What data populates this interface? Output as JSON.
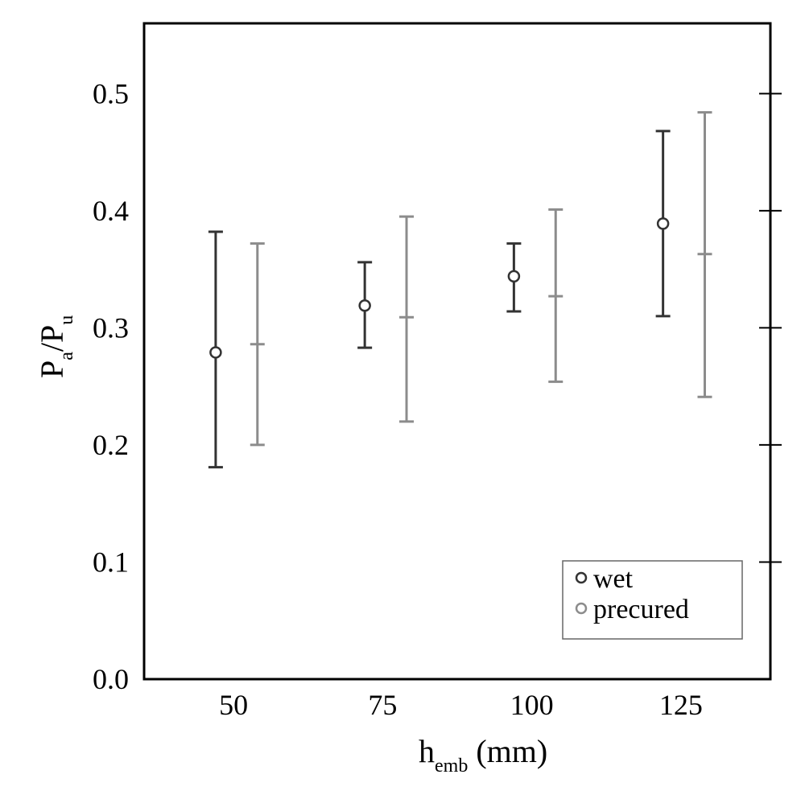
{
  "chart_data": {
    "type": "scatter",
    "title": "",
    "xlabel": {
      "main": "h",
      "sub": "emb",
      "tail": " (mm)"
    },
    "ylabel": {
      "p1": "P",
      "s1": "a",
      "slash": "/P",
      "s2": "u"
    },
    "ylim": [
      0.0,
      0.56
    ],
    "xlim": [
      35,
      140
    ],
    "grid": false,
    "legend_position": "bottom-right",
    "x_ticks": [
      {
        "value": 50,
        "label": "50"
      },
      {
        "value": 75,
        "label": "75"
      },
      {
        "value": 100,
        "label": "100"
      },
      {
        "value": 125,
        "label": "125"
      }
    ],
    "y_ticks": [
      {
        "value": 0.0,
        "label": "0.0"
      },
      {
        "value": 0.1,
        "label": "0.1"
      },
      {
        "value": 0.2,
        "label": "0.2"
      },
      {
        "value": 0.3,
        "label": "0.3"
      },
      {
        "value": 0.4,
        "label": "0.4"
      },
      {
        "value": 0.5,
        "label": "0.5"
      }
    ],
    "series": [
      {
        "name": "wet",
        "color": "#333333",
        "marker": "circle",
        "points": [
          {
            "x": 47,
            "y": 0.279,
            "low": 0.181,
            "high": 0.382
          },
          {
            "x": 72,
            "y": 0.319,
            "low": 0.283,
            "high": 0.356
          },
          {
            "x": 97,
            "y": 0.344,
            "low": 0.314,
            "high": 0.372
          },
          {
            "x": 122,
            "y": 0.389,
            "low": 0.31,
            "high": 0.468
          }
        ]
      },
      {
        "name": "precured",
        "color": "#8c8c8c",
        "marker": "none",
        "points": [
          {
            "x": 54,
            "y": 0.286,
            "low": 0.2,
            "high": 0.372
          },
          {
            "x": 79,
            "y": 0.309,
            "low": 0.22,
            "high": 0.395
          },
          {
            "x": 104,
            "y": 0.327,
            "low": 0.254,
            "high": 0.401
          },
          {
            "x": 129,
            "y": 0.363,
            "low": 0.241,
            "high": 0.484
          }
        ]
      }
    ]
  },
  "legend": {
    "items": [
      {
        "label": "wet",
        "color": "#333333"
      },
      {
        "label": "precured",
        "color": "#8c8c8c"
      }
    ]
  }
}
